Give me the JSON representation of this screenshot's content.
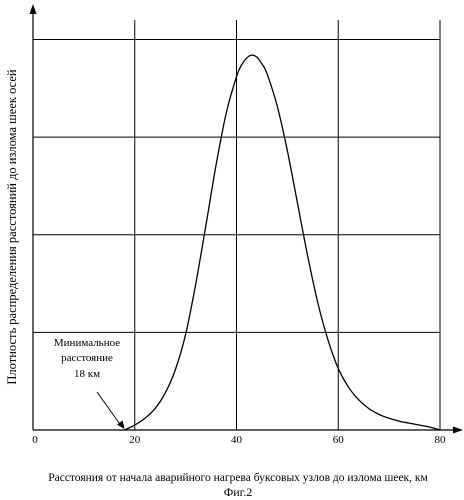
{
  "chart_data": {
    "type": "line",
    "title": "",
    "xlabel": "Расстояния от начала аварийного нагрева буксовых узлов до излома шеек, км",
    "ylabel": "Плотность распределения расстояний до излома шеек осей",
    "caption": "Фиг.2",
    "xlim": [
      0,
      82
    ],
    "ylim": [
      0,
      4.2
    ],
    "xticks": [
      0,
      20,
      40,
      60,
      80
    ],
    "yticks": [
      0,
      1,
      2,
      3,
      4
    ],
    "grid": true,
    "series": [
      {
        "x": [
          18,
          20,
          22,
          24,
          26,
          28,
          30,
          32,
          34,
          36,
          38,
          40,
          41,
          42,
          43,
          44,
          45,
          46,
          48,
          50,
          52,
          54,
          56,
          58,
          60,
          62,
          64,
          66,
          68,
          70,
          72,
          74,
          76,
          78,
          80
        ],
        "y": [
          0.0,
          0.05,
          0.12,
          0.22,
          0.38,
          0.62,
          0.98,
          1.5,
          2.1,
          2.72,
          3.25,
          3.62,
          3.74,
          3.81,
          3.84,
          3.82,
          3.75,
          3.65,
          3.32,
          2.86,
          2.32,
          1.78,
          1.3,
          0.92,
          0.63,
          0.44,
          0.31,
          0.22,
          0.16,
          0.12,
          0.09,
          0.07,
          0.05,
          0.03,
          0.0
        ],
        "color": "#000000"
      }
    ],
    "annotation": {
      "lines": [
        "Минимальное",
        "расстояние",
        "18 км"
      ],
      "x": 18,
      "y": 0
    }
  }
}
